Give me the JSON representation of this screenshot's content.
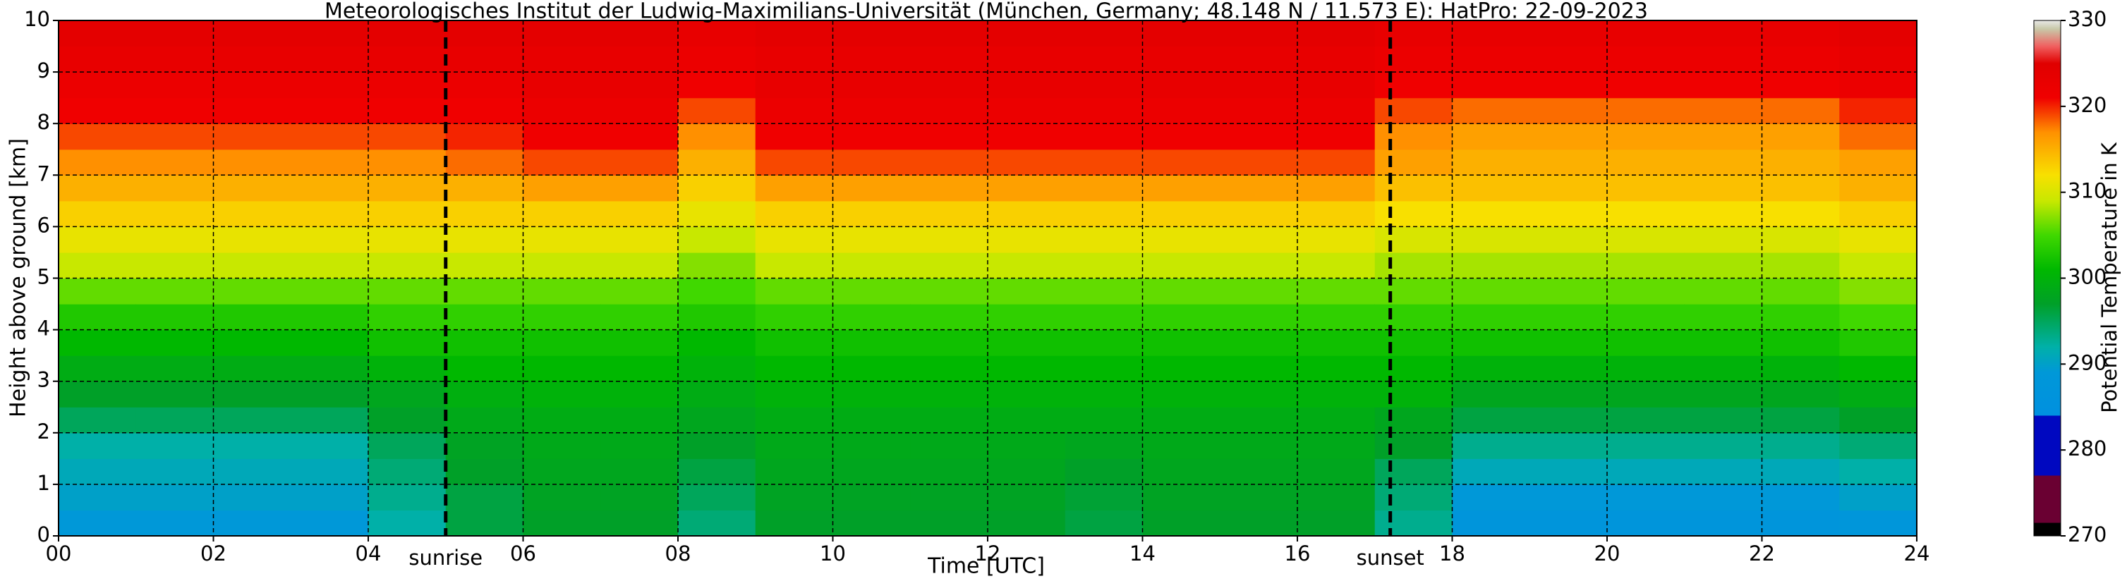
{
  "chart_data": {
    "type": "heatmap",
    "title": "Meteorologisches Institut der Ludwig-Maximilians-Universität (München, Germany; 48.148 N / 11.573 E):    HatPro: 22-09-2023",
    "xlabel": "Time [UTC]",
    "ylabel": "Height above ground [km]",
    "x": [
      0.5,
      1.5,
      2.5,
      3.5,
      4.5,
      5.5,
      6.5,
      7.5,
      8.5,
      9.5,
      10.5,
      11.5,
      12.5,
      13.5,
      14.5,
      15.5,
      16.5,
      17.5,
      18.5,
      19.5,
      20.5,
      21.5,
      22.5,
      23.5
    ],
    "y": [
      0.25,
      0.75,
      1.25,
      1.75,
      2.25,
      2.75,
      3.25,
      3.75,
      4.25,
      4.75,
      5.25,
      5.75,
      6.25,
      6.75,
      7.25,
      7.75,
      8.25,
      8.75,
      9.25,
      9.75
    ],
    "z": [
      [
        289,
        290,
        291,
        292,
        295,
        297,
        299,
        301,
        303,
        306,
        309,
        311,
        313,
        315,
        317,
        319,
        321,
        322,
        323,
        324
      ],
      [
        289,
        290,
        291,
        292,
        295,
        297,
        299,
        301,
        303,
        306,
        309,
        311,
        313,
        315,
        317,
        319,
        321,
        322,
        323,
        324
      ],
      [
        289,
        290,
        291,
        292,
        295,
        297,
        299,
        301,
        303,
        306,
        309,
        311,
        313,
        315,
        317,
        319,
        321,
        322,
        323,
        324
      ],
      [
        289,
        290,
        291,
        292,
        295,
        297,
        299,
        301,
        303,
        306,
        309,
        311,
        313,
        315,
        317,
        319,
        321,
        322,
        323,
        324
      ],
      [
        292,
        293,
        294,
        295,
        297,
        298,
        300,
        302,
        304,
        306,
        309,
        311,
        313,
        315,
        317,
        319,
        321,
        322,
        323,
        324
      ],
      [
        296,
        296,
        297,
        297.5,
        298.5,
        299.5,
        301,
        302,
        304,
        306,
        309,
        311,
        313,
        315,
        318,
        320,
        321,
        322,
        323,
        324
      ],
      [
        297,
        297.5,
        298,
        298.5,
        299,
        300,
        301,
        302,
        304,
        306,
        309,
        311,
        313,
        316,
        319,
        321,
        322,
        323,
        323,
        324
      ],
      [
        297,
        297.5,
        298,
        298.5,
        299,
        300,
        301,
        302,
        304,
        306,
        309,
        311,
        313,
        316,
        319,
        321,
        322,
        323,
        323,
        324
      ],
      [
        294,
        295,
        296,
        297,
        298,
        299,
        300,
        301,
        303,
        305,
        307,
        309,
        311,
        313,
        315,
        317,
        319,
        321,
        322,
        323
      ],
      [
        297,
        297.5,
        298,
        298.5,
        299,
        300,
        301,
        302,
        304,
        306,
        309,
        311,
        313,
        316,
        319,
        321,
        322,
        323,
        323,
        324
      ],
      [
        297,
        297.5,
        298,
        298.5,
        299,
        300,
        301,
        302,
        304,
        306,
        309,
        311,
        313,
        316,
        319,
        321,
        322,
        323,
        323,
        324
      ],
      [
        297,
        297.5,
        298,
        298.5,
        299,
        300,
        301,
        302,
        304,
        306,
        309,
        311,
        313,
        316,
        319,
        321,
        322,
        323,
        323,
        324
      ],
      [
        297,
        297.5,
        298,
        298.5,
        299,
        300,
        301,
        302,
        304,
        306,
        309,
        311,
        313,
        316,
        319,
        321,
        322,
        323,
        323,
        324
      ],
      [
        296,
        296.5,
        297,
        298,
        299,
        300,
        301,
        302,
        304,
        306,
        309,
        311,
        313,
        316,
        319,
        321,
        322,
        323,
        323,
        324
      ],
      [
        297,
        297.5,
        298,
        298.5,
        299,
        300,
        301,
        302,
        304,
        306,
        309,
        311,
        313,
        316,
        319,
        321,
        322,
        323,
        323,
        324
      ],
      [
        297,
        297.5,
        298,
        298.5,
        299,
        300,
        301,
        302,
        304,
        306,
        309,
        311,
        313,
        316,
        319,
        321,
        322,
        323,
        323,
        324
      ],
      [
        297,
        297.5,
        298,
        298.5,
        299,
        300,
        301,
        302,
        304,
        306,
        309,
        311,
        313,
        316,
        319,
        321,
        322,
        323,
        323,
        324
      ],
      [
        293,
        294,
        295,
        297,
        298,
        300,
        301,
        302,
        304,
        306,
        308,
        310,
        312,
        314,
        316,
        317,
        319,
        321,
        322,
        323
      ],
      [
        287,
        289,
        291,
        293,
        296,
        298,
        300,
        302,
        304,
        306,
        308,
        310,
        312,
        314,
        315,
        316,
        318,
        321,
        322,
        323
      ],
      [
        287,
        289,
        291,
        293,
        296,
        298,
        300,
        302,
        304,
        306,
        308,
        310,
        312,
        314,
        315,
        316,
        318,
        321,
        322,
        323
      ],
      [
        287,
        289,
        291,
        293,
        296,
        298,
        300,
        302,
        304,
        306,
        308,
        310,
        312,
        314,
        315,
        316,
        318,
        321,
        322,
        323
      ],
      [
        287,
        289,
        291,
        293,
        296,
        298,
        300,
        302,
        304,
        306,
        308,
        310,
        312,
        314,
        315,
        316,
        318,
        321,
        322,
        323
      ],
      [
        287,
        289,
        291,
        293,
        296,
        298,
        300,
        302,
        304,
        306,
        308,
        310,
        312,
        314,
        315,
        316,
        318,
        321,
        322,
        323
      ],
      [
        288,
        290,
        292,
        294,
        297,
        299,
        301,
        303,
        305,
        307,
        309,
        311,
        313,
        315,
        316,
        318,
        320,
        322,
        323,
        324
      ]
    ],
    "xlim": [
      0,
      24
    ],
    "ylim": [
      0,
      10
    ],
    "xticks": [
      {
        "value": 0,
        "label": "00"
      },
      {
        "value": 2,
        "label": "02"
      },
      {
        "value": 4,
        "label": "04"
      },
      {
        "value": 6,
        "label": "06"
      },
      {
        "value": 8,
        "label": "08"
      },
      {
        "value": 10,
        "label": "10"
      },
      {
        "value": 12,
        "label": "12"
      },
      {
        "value": 14,
        "label": "14"
      },
      {
        "value": 16,
        "label": "16"
      },
      {
        "value": 18,
        "label": "18"
      },
      {
        "value": 20,
        "label": "20"
      },
      {
        "value": 22,
        "label": "22"
      },
      {
        "value": 24,
        "label": "24"
      }
    ],
    "yticks": [
      0,
      1,
      2,
      3,
      4,
      5,
      6,
      7,
      8,
      9,
      10
    ],
    "grid": true,
    "annotations": [
      {
        "text": "sunrise",
        "x": 5.0
      },
      {
        "text": "sunset",
        "x": 17.2
      }
    ],
    "colorbar": {
      "label": "Potential Temperature in K",
      "lim": [
        270,
        330
      ],
      "ticks": [
        270,
        280,
        290,
        300,
        310,
        320,
        330
      ]
    },
    "colors": [
      [
        270,
        "#000000"
      ],
      [
        271.5,
        "#000000"
      ],
      [
        271.5,
        "#6a0032"
      ],
      [
        277,
        "#6a0032"
      ],
      [
        277,
        "#0008c0"
      ],
      [
        284,
        "#0008c0"
      ],
      [
        284,
        "#0090e0"
      ],
      [
        289,
        "#0098d8"
      ],
      [
        292,
        "#00b0a8"
      ],
      [
        297,
        "#00a028"
      ],
      [
        301,
        "#00b800"
      ],
      [
        305,
        "#40d800"
      ],
      [
        309,
        "#c8e800"
      ],
      [
        312,
        "#f8e000"
      ],
      [
        317,
        "#ff9000"
      ],
      [
        321,
        "#f00000"
      ],
      [
        325,
        "#e00000"
      ],
      [
        327,
        "#f06060"
      ],
      [
        329,
        "#c8c8a8"
      ],
      [
        330,
        "#e8e8e8"
      ]
    ]
  }
}
